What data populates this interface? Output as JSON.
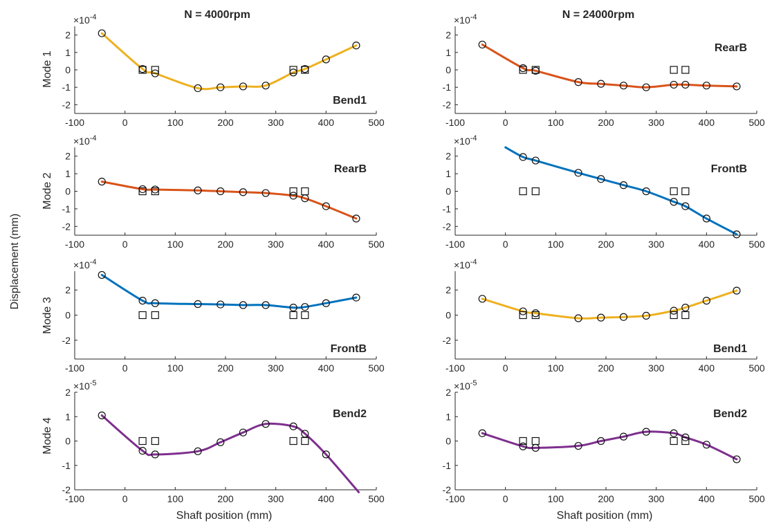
{
  "figure": {
    "ylabel": "Displacement (mm)",
    "xlabel": "Shaft position (mm)",
    "column_titles": [
      "N = 4000rpm",
      "N = 24000rpm"
    ],
    "row_labels": [
      "Mode 1",
      "Mode 2",
      "Mode 3",
      "Mode 4"
    ]
  },
  "colors": {
    "yellow": "#EDB120",
    "orange": "#D95319",
    "blue": "#0072BD",
    "purple": "#7E2F8E"
  },
  "chart_data": [
    {
      "type": "line",
      "column": 0,
      "row": 0,
      "mode_label": "Bend1",
      "color": "#EDB120",
      "exponent": "-4",
      "xlim": [
        -100,
        500
      ],
      "ylim": [
        -2.5,
        2.5
      ],
      "yticks": [
        -2,
        -1,
        0,
        1,
        2
      ],
      "xticks": [
        -100,
        0,
        100,
        200,
        300,
        400,
        500
      ],
      "x": [
        -46,
        35,
        60,
        145,
        190,
        235,
        280,
        335,
        358,
        400,
        460
      ],
      "values": [
        2.1,
        0.05,
        -0.2,
        -1.05,
        -1.0,
        -0.95,
        -0.9,
        -0.15,
        0.05,
        0.6,
        1.4
      ],
      "squares": [
        {
          "x": 35,
          "y": 0
        },
        {
          "x": 60,
          "y": 0
        },
        {
          "x": 335,
          "y": 0
        },
        {
          "x": 358,
          "y": 0
        }
      ]
    },
    {
      "type": "line",
      "column": 0,
      "row": 1,
      "mode_label": "RearB",
      "color": "#D95319",
      "exponent": "-4",
      "xlim": [
        -100,
        500
      ],
      "ylim": [
        -2.5,
        2.5
      ],
      "yticks": [
        -2,
        -1,
        0,
        1,
        2
      ],
      "xticks": [
        -100,
        0,
        100,
        200,
        300,
        400,
        500
      ],
      "x": [
        -46,
        35,
        60,
        145,
        190,
        235,
        280,
        335,
        358,
        400,
        460
      ],
      "values": [
        0.55,
        0.12,
        0.1,
        0.05,
        0.0,
        -0.05,
        -0.1,
        -0.25,
        -0.4,
        -0.85,
        -1.55
      ],
      "squares": [
        {
          "x": 35,
          "y": 0
        },
        {
          "x": 60,
          "y": 0
        },
        {
          "x": 335,
          "y": 0
        },
        {
          "x": 358,
          "y": 0
        }
      ]
    },
    {
      "type": "line",
      "column": 0,
      "row": 2,
      "mode_label": "FrontB",
      "color": "#0072BD",
      "exponent": "-4",
      "xlim": [
        -100,
        500
      ],
      "ylim": [
        -3.5,
        3.5
      ],
      "yticks": [
        -2,
        0,
        2
      ],
      "xticks": [
        -100,
        0,
        100,
        200,
        300,
        400,
        500
      ],
      "x": [
        -46,
        35,
        60,
        145,
        190,
        235,
        280,
        335,
        358,
        400,
        460
      ],
      "values": [
        3.2,
        1.15,
        0.95,
        0.88,
        0.85,
        0.8,
        0.8,
        0.6,
        0.65,
        0.95,
        1.4
      ],
      "squares": [
        {
          "x": 35,
          "y": 0
        },
        {
          "x": 60,
          "y": 0
        },
        {
          "x": 335,
          "y": 0
        },
        {
          "x": 358,
          "y": 0
        }
      ]
    },
    {
      "type": "line",
      "column": 0,
      "row": 3,
      "mode_label": "Bend2",
      "color": "#7E2F8E",
      "exponent": "-5",
      "xlim": [
        -100,
        500
      ],
      "ylim": [
        -2,
        2
      ],
      "yticks": [
        -2,
        -1,
        0,
        1,
        2
      ],
      "xticks": [
        -100,
        0,
        100,
        200,
        300,
        400,
        500
      ],
      "x": [
        -46,
        35,
        60,
        145,
        190,
        235,
        280,
        335,
        358,
        400
      ],
      "values": [
        1.05,
        -0.4,
        -0.55,
        -0.42,
        -0.05,
        0.35,
        0.7,
        0.6,
        0.3,
        -0.55
      ],
      "curve_end": {
        "x": 465,
        "y": -2.1
      },
      "squares": [
        {
          "x": 35,
          "y": 0
        },
        {
          "x": 60,
          "y": 0
        },
        {
          "x": 335,
          "y": 0
        },
        {
          "x": 358,
          "y": 0
        }
      ]
    },
    {
      "type": "line",
      "column": 1,
      "row": 0,
      "mode_label": "RearB",
      "color": "#D95319",
      "exponent": "-4",
      "xlim": [
        -100,
        500
      ],
      "ylim": [
        -2.5,
        2.5
      ],
      "yticks": [
        -2,
        -1,
        0,
        1,
        2
      ],
      "xticks": [
        -100,
        0,
        100,
        200,
        300,
        400,
        500
      ],
      "x": [
        -46,
        35,
        60,
        145,
        190,
        235,
        280,
        335,
        358,
        400,
        460
      ],
      "values": [
        1.45,
        0.1,
        -0.05,
        -0.7,
        -0.8,
        -0.9,
        -1.0,
        -0.85,
        -0.85,
        -0.9,
        -0.95
      ],
      "squares": [
        {
          "x": 35,
          "y": 0
        },
        {
          "x": 60,
          "y": 0
        },
        {
          "x": 335,
          "y": 0
        },
        {
          "x": 358,
          "y": 0
        }
      ]
    },
    {
      "type": "line",
      "column": 1,
      "row": 1,
      "mode_label": "FrontB",
      "color": "#0072BD",
      "exponent": "-4",
      "xlim": [
        -100,
        500
      ],
      "ylim": [
        -2.5,
        2.5
      ],
      "yticks": [
        -2,
        -1,
        0,
        1,
        2
      ],
      "xticks": [
        -100,
        0,
        100,
        200,
        300,
        400,
        500
      ],
      "x": [
        35,
        60,
        145,
        190,
        235,
        280,
        335,
        358,
        400,
        460
      ],
      "values": [
        1.95,
        1.75,
        1.05,
        0.7,
        0.35,
        0.0,
        -0.6,
        -0.85,
        -1.55,
        -2.45
      ],
      "curve_start": {
        "x": 0,
        "y": 2.5
      },
      "squares": [
        {
          "x": 35,
          "y": 0
        },
        {
          "x": 60,
          "y": 0
        },
        {
          "x": 335,
          "y": 0
        },
        {
          "x": 358,
          "y": 0
        }
      ]
    },
    {
      "type": "line",
      "column": 1,
      "row": 2,
      "mode_label": "Bend1",
      "color": "#EDB120",
      "exponent": "-4",
      "xlim": [
        -100,
        500
      ],
      "ylim": [
        -3.5,
        3.5
      ],
      "yticks": [
        -2,
        0,
        2
      ],
      "xticks": [
        -100,
        0,
        100,
        200,
        300,
        400,
        500
      ],
      "x": [
        -46,
        35,
        60,
        145,
        190,
        235,
        280,
        335,
        358,
        400,
        460
      ],
      "values": [
        1.3,
        0.3,
        0.15,
        -0.25,
        -0.2,
        -0.15,
        -0.05,
        0.35,
        0.6,
        1.15,
        1.95
      ],
      "squares": [
        {
          "x": 35,
          "y": 0
        },
        {
          "x": 60,
          "y": 0
        },
        {
          "x": 335,
          "y": 0
        },
        {
          "x": 358,
          "y": 0
        }
      ]
    },
    {
      "type": "line",
      "column": 1,
      "row": 3,
      "mode_label": "Bend2",
      "color": "#7E2F8E",
      "exponent": "-5",
      "xlim": [
        -100,
        500
      ],
      "ylim": [
        -2,
        2
      ],
      "yticks": [
        -2,
        -1,
        0,
        1,
        2
      ],
      "xticks": [
        -100,
        0,
        100,
        200,
        300,
        400,
        500
      ],
      "x": [
        -46,
        35,
        60,
        145,
        190,
        235,
        280,
        335,
        358,
        400,
        460
      ],
      "values": [
        0.32,
        -0.22,
        -0.28,
        -0.2,
        0.0,
        0.18,
        0.38,
        0.32,
        0.15,
        -0.15,
        -0.75
      ],
      "squares": [
        {
          "x": 35,
          "y": 0
        },
        {
          "x": 60,
          "y": 0
        },
        {
          "x": 335,
          "y": 0
        },
        {
          "x": 358,
          "y": 0
        }
      ]
    }
  ]
}
